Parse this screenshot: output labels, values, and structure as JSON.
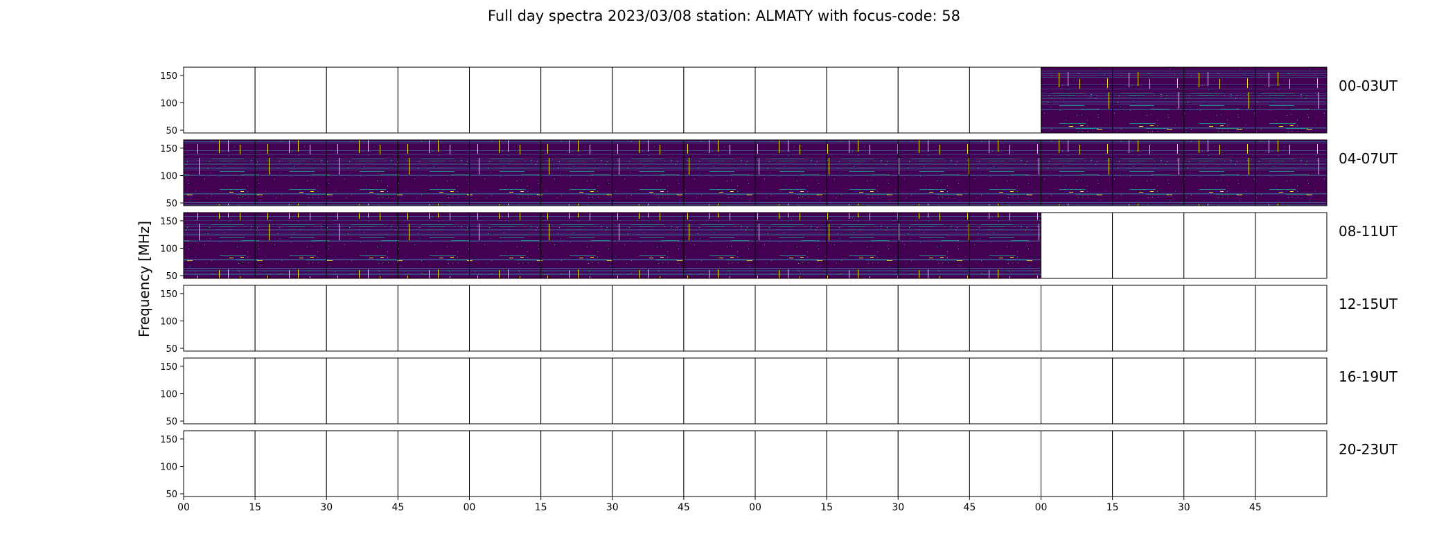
{
  "title": "Full day spectra 2023/03/08 station: ALMATY with focus-code: 58",
  "ylabel": "Frequency [MHz]",
  "colors": {
    "background": "#440154",
    "low": "#3b528b",
    "mid": "#21918c",
    "high": "#5ec962",
    "peak": "#fde725",
    "frame": "#000000"
  },
  "chart_data": {
    "type": "heatmap",
    "title": "Full day spectra 2023/03/08 station: ALMATY with focus-code: 58",
    "ylabel": "Frequency [MHz]",
    "ylim": [
      45,
      165
    ],
    "yticks": [
      50,
      100,
      150
    ],
    "xticks": [
      "00",
      "15",
      "30",
      "45",
      "00",
      "15",
      "30",
      "45",
      "00",
      "15",
      "30",
      "45",
      "00",
      "15",
      "30",
      "45"
    ],
    "panels_per_row": 16,
    "panel_minutes": 15,
    "colormap": "viridis",
    "rows": [
      {
        "label": "00-03UT",
        "panels_with_data": [
          12,
          13,
          14,
          15
        ]
      },
      {
        "label": "04-07UT",
        "panels_with_data": [
          0,
          1,
          2,
          3,
          4,
          5,
          6,
          7,
          8,
          9,
          10,
          11,
          12,
          13,
          14,
          15
        ]
      },
      {
        "label": "08-11UT",
        "panels_with_data": [
          0,
          1,
          2,
          3,
          4,
          5,
          6,
          7,
          8,
          9,
          10,
          11
        ]
      },
      {
        "label": "12-15UT",
        "panels_with_data": []
      },
      {
        "label": "16-19UT",
        "panels_with_data": []
      },
      {
        "label": "20-23UT",
        "panels_with_data": []
      }
    ]
  }
}
